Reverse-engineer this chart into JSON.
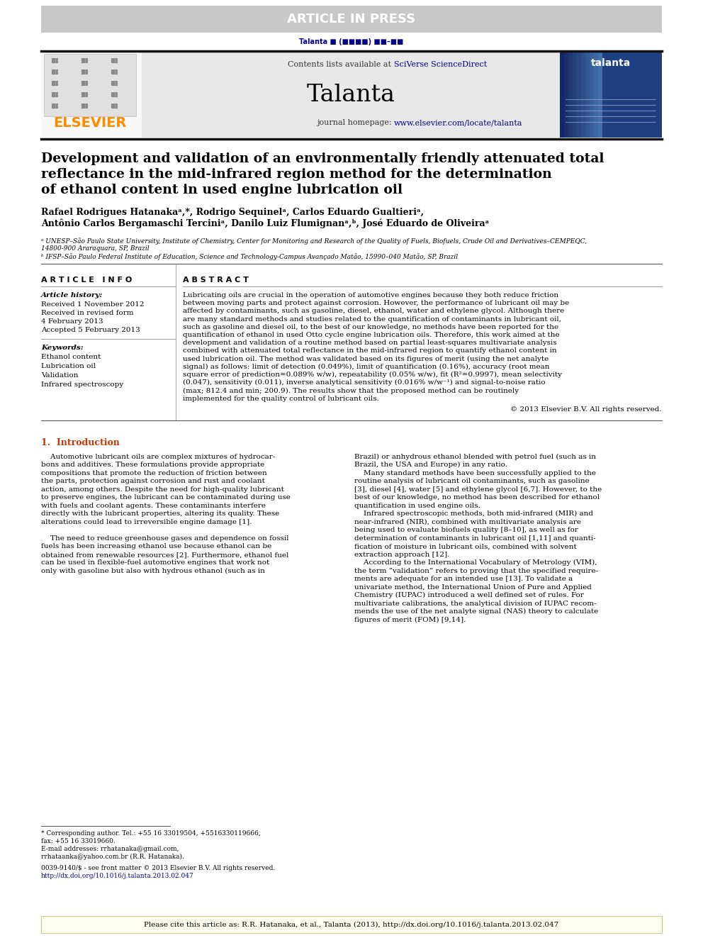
{
  "article_in_press_text": "ARTICLE IN PRESS",
  "article_in_press_bg": "#c8c8c8",
  "article_in_press_color": "#ffffff",
  "journal_ref_color": "#00008B",
  "contents_text": "Contents lists available at ",
  "sciverse_text": "SciVerse ScienceDirect",
  "journal_name": "Talanta",
  "journal_homepage_prefix": "journal homepage: ",
  "journal_homepage_url": "www.elsevier.com/locate/talanta",
  "elsevier_color": "#FF8C00",
  "sciverse_color": "#00008B",
  "url_color": "#00008B",
  "header_bg": "#e8e8e8",
  "paper_title_line1": "Development and validation of an environmentally friendly attenuated total",
  "paper_title_line2": "reflectance in the mid-infrared region method for the determination",
  "paper_title_line3": "of ethanol content in used engine lubrication oil",
  "affil_a": "ᵃ UNESP–São Paulo State University, Institute of Chemistry, Center for Monitoring and Research of the Quality of Fuels, Biofuels, Crude Oil and Derivatives–CEMPEQC,",
  "affil_a2": "14800-900 Araraquara, SP, Brazil",
  "affil_b": "ᵇ IFSP–São Paulo Federal Institute of Education, Science and Technology-Campus Avançado Matão, 15990–040 Matão, SP, Brazil",
  "article_info_title": "A R T I C L E   I N F O",
  "article_history_title": "Article history:",
  "received_1": "Received 1 November 2012",
  "received_revised": "Received in revised form",
  "received_revised_date": "4 February 2013",
  "accepted": "Accepted 5 February 2013",
  "keywords_title": "Keywords:",
  "keywords": [
    "Ethanol content",
    "Lubrication oil",
    "Validation",
    "Infrared spectroscopy"
  ],
  "abstract_title": "A B S T R A C T",
  "abstract_text": "Lubricating oils are crucial in the operation of automotive engines because they both reduce friction\nbetween moving parts and protect against corrosion. However, the performance of lubricant oil may be\naffected by contaminants, such as gasoline, diesel, ethanol, water and ethylene glycol. Although there\nare many standard methods and studies related to the quantification of contaminants in lubricant oil,\nsuch as gasoline and diesel oil, to the best of our knowledge, no methods have been reported for the\nquantification of ethanol in used Otto cycle engine lubrication oils. Therefore, this work aimed at the\ndevelopment and validation of a routine method based on partial least-squares multivariate analysis\ncombined with attenuated total reflectance in the mid-infrared region to quantify ethanol content in\nused lubrication oil. The method was validated based on its figures of merit (using the net analyte\nsignal) as follows: limit of detection (0.049%), limit of quantification (0.16%), accuracy (root mean\nsquare error of prediction=0.089% w/w), repeatability (0.05% w/w), fit (R²=0.9997), mean selectivity\n(0.047), sensitivity (0.011), inverse analytical sensitivity (0.016% w/w⁻¹) and signal-to-noise ratio\n(max; 812.4 and min; 200.9). The results show that the proposed method can be routinely\nimplemented for the quality control of lubricant oils.",
  "copyright_text": "© 2013 Elsevier B.V. All rights reserved.",
  "intro_title": "1.  Introduction",
  "intro_col1_lines": [
    "    Automotive lubricant oils are complex mixtures of hydrocar-",
    "bons and additives. These formulations provide appropriate",
    "compositions that promote the reduction of friction between",
    "the parts, protection against corrosion and rust and coolant",
    "action, among others. Despite the need for high-quality lubricant",
    "to preserve engines, the lubricant can be contaminated during use",
    "with fuels and coolant agents. These contaminants interfere",
    "directly with the lubricant properties, altering its quality. These",
    "alterations could lead to irreversible engine damage [1].",
    "",
    "    The need to reduce greenhouse gases and dependence on fossil",
    "fuels has been increasing ethanol use because ethanol can be",
    "obtained from renewable resources [2]. Furthermore, ethanol fuel",
    "can be used in flexible-fuel automotive engines that work not",
    "only with gasoline but also with hydrous ethanol (such as in"
  ],
  "intro_col2_lines": [
    "Brazil) or anhydrous ethanol blended with petrol fuel (such as in",
    "Brazil, the USA and Europe) in any ratio.",
    "    Many standard methods have been successfully applied to the",
    "routine analysis of lubricant oil contaminants, such as gasoline",
    "[3], diesel [4], water [5] and ethylene glycol [6,7]. However, to the",
    "best of our knowledge, no method has been described for ethanol",
    "quantification in used engine oils.",
    "    Infrared spectroscopic methods, both mid-infrared (MIR) and",
    "near-infrared (NIR), combined with multivariate analysis are",
    "being used to evaluate biofuels quality [8–10], as well as for",
    "determination of contaminants in lubricant oil [1,11] and quanti-",
    "fication of moisture in lubricant oils, combined with solvent",
    "extraction approach [12].",
    "    According to the International Vocabulary of Metrology (VIM),",
    "the term “validation” refers to proving that the specified require-",
    "ments are adequate for an intended use [13]. To validate a",
    "univariate method, the International Union of Pure and Applied",
    "Chemistry (IUPAC) introduced a well defined set of rules. For",
    "multivariate calibrations, the analytical division of IUPAC recom-",
    "mends the use of the net analyte signal (NAS) theory to calculate",
    "figures of merit (FOM) [9,14]."
  ],
  "footnote_corresponding": "* Corresponding author. Tel.: +55 16 33019504, +5516330119666,",
  "footnote_fax": "fax: +55 16 33019660.",
  "footnote_email_label": "E-mail addresses: ",
  "footnote_email": "rrhatanaka@gmail.com,",
  "footnote_email2": "rrhataanka@yahoo.com.br (R.R. Hatanaka).",
  "issn_text": "0039-9140/$ - see front matter © 2013 Elsevier B.V. All rights reserved.",
  "doi_text": "http://dx.doi.org/10.1016/j.talanta.2013.02.047",
  "cite_text": "Please cite this article as: R.R. Hatanaka, et al., Talanta (2013), http://dx.doi.org/10.1016/j.talanta.2013.02.047",
  "bg_color": "#ffffff",
  "text_color": "#000000"
}
